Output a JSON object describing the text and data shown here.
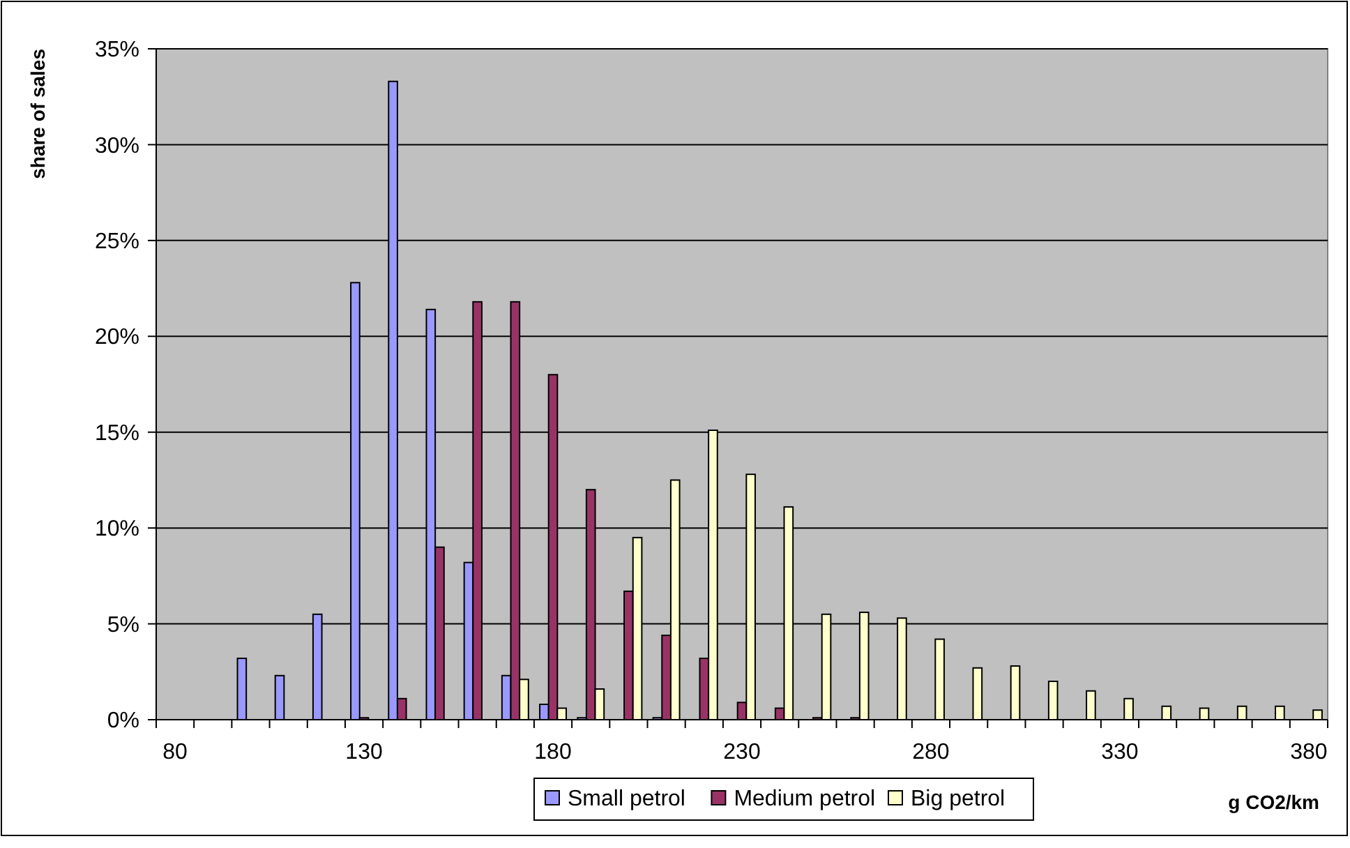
{
  "chart_data": {
    "type": "bar",
    "xlabel": "g CO2/km",
    "ylabel": "share of sales",
    "categories": [
      "80",
      null,
      null,
      null,
      null,
      "130",
      null,
      null,
      null,
      null,
      "180",
      null,
      null,
      null,
      null,
      "230",
      null,
      null,
      null,
      null,
      "280",
      null,
      null,
      null,
      null,
      "330",
      null,
      null,
      null,
      null,
      "380"
    ],
    "series": [
      {
        "name": "Small petrol",
        "color": "#9999ff",
        "values": [
          null,
          null,
          3.2,
          2.3,
          5.5,
          22.8,
          33.3,
          21.4,
          8.2,
          2.3,
          0.8,
          0.1,
          null,
          0.1,
          null,
          null,
          null,
          null,
          null,
          null,
          null,
          null,
          null,
          null,
          null,
          null,
          null,
          null,
          null,
          null,
          null
        ]
      },
      {
        "name": "Medium petrol",
        "color": "#993366",
        "values": [
          null,
          null,
          null,
          null,
          null,
          0.1,
          1.1,
          9.0,
          21.8,
          21.8,
          18.0,
          12.0,
          6.7,
          4.4,
          3.2,
          0.9,
          0.6,
          0.1,
          0.1,
          null,
          null,
          null,
          null,
          null,
          null,
          null,
          null,
          null,
          null,
          null,
          null
        ]
      },
      {
        "name": "Big petrol",
        "color": "#ffffcc",
        "values": [
          null,
          null,
          null,
          null,
          null,
          null,
          null,
          null,
          null,
          2.1,
          0.6,
          1.6,
          9.5,
          12.5,
          15.1,
          12.8,
          11.1,
          5.5,
          5.6,
          5.3,
          4.2,
          2.7,
          2.8,
          2.0,
          1.5,
          1.1,
          0.7,
          0.6,
          0.7,
          0.7,
          0.5
        ]
      }
    ],
    "ylim": [
      0,
      35
    ],
    "yticks": [
      {
        "value": 0,
        "label": "0%"
      },
      {
        "value": 5,
        "label": "5%"
      },
      {
        "value": 10,
        "label": "10%"
      },
      {
        "value": 15,
        "label": "15%"
      },
      {
        "value": 20,
        "label": "20%"
      },
      {
        "value": 25,
        "label": "25%"
      },
      {
        "value": 30,
        "label": "30%"
      },
      {
        "value": 35,
        "label": "35%"
      }
    ],
    "grid": "y",
    "legend": "bottom"
  }
}
